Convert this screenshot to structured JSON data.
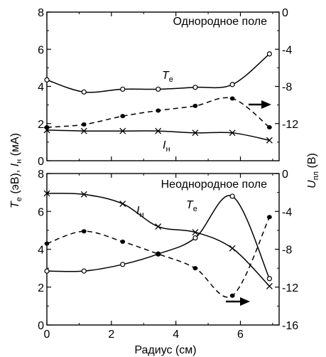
{
  "chart_data": [
    {
      "type": "line",
      "panel": "top",
      "title": "Однородное поле",
      "xlim": [
        0,
        7.2
      ],
      "ylim_left": [
        0,
        8
      ],
      "ylim_right": [
        -16,
        0
      ],
      "left_ticks": [
        0,
        2,
        4,
        6,
        8
      ],
      "right_ticks": [
        0,
        -4,
        -8,
        -12
      ],
      "series": [
        {
          "name": "T",
          "name_sub": "e",
          "axis": "left",
          "marker": "open-circle",
          "line": "solid",
          "x": [
            0,
            1.15,
            2.35,
            3.45,
            4.6,
            5.75,
            6.9
          ],
          "y": [
            4.35,
            3.7,
            3.85,
            3.85,
            3.95,
            4.1,
            5.75
          ]
        },
        {
          "name": "I",
          "name_sub": "н",
          "axis": "left",
          "marker": "cross",
          "line": "solid",
          "x": [
            0,
            1.15,
            2.35,
            3.45,
            4.6,
            5.75,
            6.9
          ],
          "y": [
            1.65,
            1.6,
            1.6,
            1.6,
            1.5,
            1.5,
            1.1
          ]
        },
        {
          "name": "",
          "axis": "right",
          "marker": "filled-circle",
          "line": "dashed",
          "x": [
            0,
            1.15,
            2.35,
            3.45,
            4.6,
            5.75,
            6.9
          ],
          "y": [
            -12.4,
            -12.1,
            -11.2,
            -10.6,
            -10.1,
            -9.3,
            -12.4
          ]
        }
      ]
    },
    {
      "type": "line",
      "panel": "bottom",
      "title": "Неоднородное поле",
      "xlim": [
        0,
        7.2
      ],
      "ylim_left": [
        0,
        8
      ],
      "ylim_right": [
        -16,
        0
      ],
      "left_ticks": [
        0,
        2,
        4,
        6,
        8
      ],
      "right_ticks": [
        0,
        -4,
        -8,
        -12,
        -16
      ],
      "series": [
        {
          "name": "I",
          "name_sub": "н",
          "axis": "left",
          "marker": "cross",
          "line": "solid",
          "x": [
            0,
            1.15,
            2.35,
            3.45,
            4.6,
            5.75,
            6.9
          ],
          "y": [
            6.95,
            6.9,
            6.4,
            5.2,
            4.9,
            4.05,
            2.05
          ]
        },
        {
          "name": "T",
          "name_sub": "e",
          "axis": "left",
          "marker": "open-circle",
          "line": "solid",
          "x": [
            0,
            1.15,
            2.35,
            3.45,
            4.6,
            5.75,
            6.9
          ],
          "y": [
            2.85,
            2.85,
            3.2,
            3.75,
            4.6,
            6.8,
            2.45
          ]
        },
        {
          "name": "",
          "axis": "right",
          "marker": "filled-circle",
          "line": "dashed",
          "x": [
            0,
            1.15,
            2.35,
            3.45,
            4.6,
            5.75,
            6.9
          ],
          "y": [
            -7.4,
            -6.1,
            -7.2,
            -8.5,
            -10.0,
            -12.9,
            -4.6
          ]
        }
      ]
    }
  ],
  "axes": {
    "xlabel": "Радиус (см)",
    "xticks": [
      0,
      2,
      4,
      6
    ],
    "ylabel_left": {
      "t": "T",
      "t_sub": "e",
      "t_unit": " (эВ), ",
      "i": "I",
      "i_sub": "н",
      "i_unit": " (мА)"
    },
    "ylabel_right": {
      "u": "U",
      "u_sub": "пл",
      "u_unit": " (В)"
    }
  }
}
